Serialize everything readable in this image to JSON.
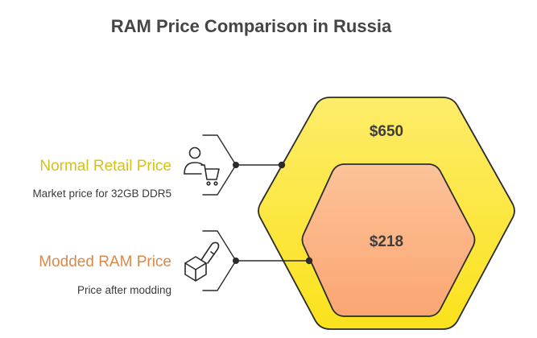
{
  "title": "RAM Price Comparison in Russia",
  "items": [
    {
      "label": "Normal Retail Price",
      "description": "Market price for 32GB DDR5",
      "price": "$650",
      "icon": "person-cart-icon",
      "color": "#d6c118"
    },
    {
      "label": "Modded RAM Price",
      "description": "Price after modding",
      "price": "$218",
      "icon": "box-tool-icon",
      "color": "#d9894a"
    }
  ],
  "colors": {
    "outer_hexagon": "#fde43a",
    "inner_hexagon": "#fcb787",
    "outline": "#2b2b2b"
  }
}
